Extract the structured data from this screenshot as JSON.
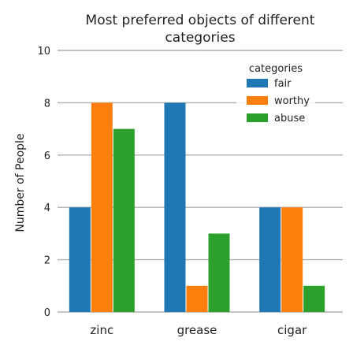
{
  "chart_data": {
    "type": "bar",
    "title": "Most preferred objects of different categories",
    "title_lines": [
      "Most preferred objects of different",
      "categories"
    ],
    "xlabel": "",
    "ylabel": "Number of People",
    "categories": [
      "zinc",
      "grease",
      "cigar"
    ],
    "series": [
      {
        "name": "fair",
        "color": "#1f77b4",
        "values": [
          4,
          8,
          4
        ]
      },
      {
        "name": "worthy",
        "color": "#ff7f0e",
        "values": [
          8,
          1,
          4
        ]
      },
      {
        "name": "abuse",
        "color": "#2ca02c",
        "values": [
          7,
          3,
          1
        ]
      }
    ],
    "ylim": [
      0,
      10
    ],
    "yticks": [
      "0",
      "2",
      "4",
      "6",
      "8",
      "10"
    ],
    "grid": true,
    "legend": {
      "title": "categories",
      "placement": "top-right"
    }
  }
}
